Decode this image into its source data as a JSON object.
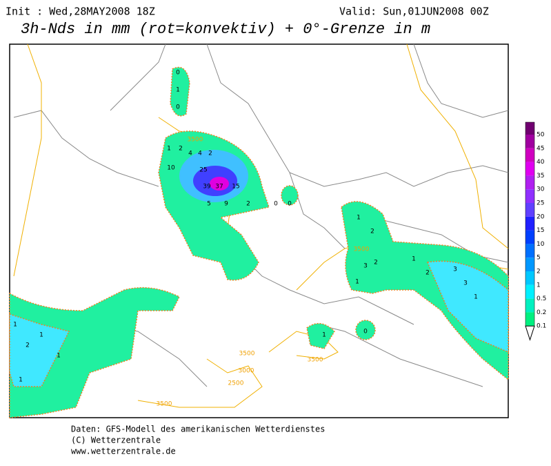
{
  "header": {
    "init": "Init : Wed,28MAY2008 18Z",
    "valid": "Valid: Sun,01JUN2008 00Z",
    "title": "3h-Nds in mm (rot=konvektiv) + 0°-Grenze in m"
  },
  "precip_labels": [
    0,
    1,
    0,
    1,
    2,
    4,
    4,
    2,
    10,
    25,
    39,
    37,
    15,
    5,
    9,
    2,
    0,
    0,
    1,
    2,
    3,
    2,
    1,
    1,
    2,
    3,
    3,
    1,
    1,
    2,
    1,
    1,
    1,
    1,
    0
  ],
  "isoline_labels": [
    "3500",
    "3500",
    "3500",
    "3500",
    "3000",
    "2500",
    "3500"
  ],
  "legend": {
    "levels": [
      {
        "value": 50,
        "color": "#700070"
      },
      {
        "value": 45,
        "color": "#a000a0"
      },
      {
        "value": 40,
        "color": "#d000c0"
      },
      {
        "value": 35,
        "color": "#e000f0"
      },
      {
        "value": 30,
        "color": "#b020f0"
      },
      {
        "value": 25,
        "color": "#9030ff"
      },
      {
        "value": 20,
        "color": "#6040ff"
      },
      {
        "value": 15,
        "color": "#2020ff"
      },
      {
        "value": 10,
        "color": "#0040ff"
      },
      {
        "value": 5,
        "color": "#0070ff"
      },
      {
        "value": 2,
        "color": "#0098ff"
      },
      {
        "value": 1,
        "color": "#00c8ff"
      },
      {
        "value": 0.5,
        "color": "#00f0ff"
      },
      {
        "value": 0.2,
        "color": "#00f0c0"
      },
      {
        "value": 0.1,
        "color": "#00f080"
      }
    ]
  },
  "footer": [
    "Daten: GFS-Modell des amerikanischen Wetterdienstes",
    "(C) Wetterzentrale",
    "www.wetterzentrale.de"
  ]
}
